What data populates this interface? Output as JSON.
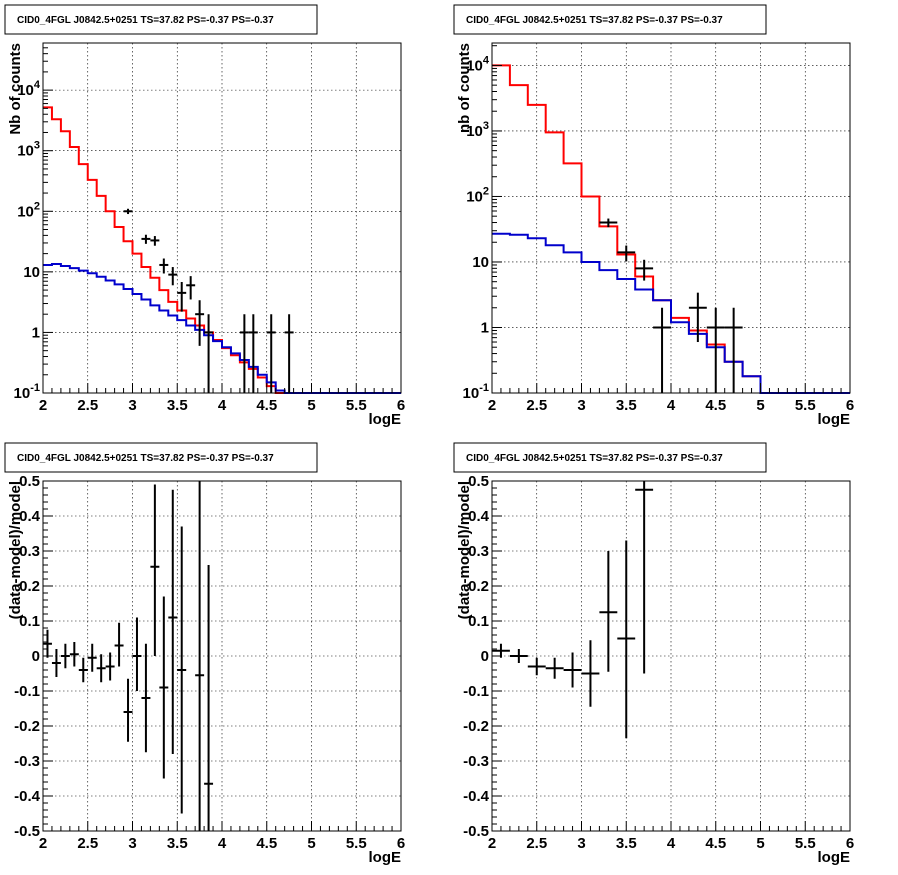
{
  "chart_data": [
    {
      "type": "histogram-errorbar",
      "title": "CID0_4FGL J0842.5+0251 TS=37.82 PS=-0.37 PS=-0.37",
      "xlabel": "logE",
      "ylabel": "Nb of counts",
      "xlim": [
        2,
        6
      ],
      "ylim": [
        0.1,
        60000
      ],
      "yscale": "log",
      "grid": true,
      "x_ticks": [
        "2",
        "2.5",
        "3",
        "3.5",
        "4",
        "4.5",
        "5",
        "5.5",
        "6"
      ],
      "y_ticks": [
        "10^-1",
        "1",
        "10",
        "10^2",
        "10^3",
        "10^4"
      ],
      "bin_width": 0.1,
      "bin_lows": [
        2.0,
        2.1,
        2.2,
        2.3,
        2.4,
        2.5,
        2.6,
        2.7,
        2.8,
        2.9,
        3.0,
        3.1,
        3.2,
        3.3,
        3.4,
        3.5,
        3.6,
        3.7,
        3.8,
        3.9,
        4.0,
        4.1,
        4.2,
        4.3,
        4.4,
        4.5,
        4.6,
        4.7,
        4.8,
        4.9,
        5.0,
        5.1,
        5.2,
        5.3,
        5.4,
        5.5,
        5.6,
        5.7,
        5.8,
        5.9
      ],
      "series": [
        {
          "color": "#ff0000",
          "style": "step",
          "values": [
            5200,
            3300,
            2100,
            1150,
            600,
            330,
            180,
            100,
            55,
            32,
            20,
            12,
            8,
            5,
            3.2,
            2.3,
            1.7,
            1.3,
            1.0,
            0.75,
            0.55,
            0.42,
            0.32,
            0.25,
            0.18,
            0.13,
            0.1,
            0.1,
            0.1,
            0.1,
            0.1,
            0.1,
            0.1,
            0.1,
            0.1,
            0.1,
            0.1,
            0.1,
            0.1,
            0.1
          ]
        },
        {
          "color": "#0000cc",
          "style": "step",
          "values": [
            13,
            13.5,
            12.5,
            11.5,
            10.5,
            9.5,
            8.3,
            7.2,
            6.2,
            5.2,
            4.3,
            3.5,
            2.8,
            2.3,
            1.9,
            1.6,
            1.3,
            1.1,
            0.9,
            0.72,
            0.57,
            0.45,
            0.35,
            0.27,
            0.2,
            0.15,
            0.11,
            0.1,
            0.1,
            0.1,
            0.1,
            0.1,
            0.1,
            0.1,
            0.1,
            0.1,
            0.1,
            0.1,
            0.1,
            0.1
          ]
        }
      ],
      "points": [
        {
          "x": 2.95,
          "y": 100,
          "lo": 90,
          "hi": 110
        },
        {
          "x": 3.15,
          "y": 35,
          "lo": 29,
          "hi": 41
        },
        {
          "x": 3.25,
          "y": 33,
          "lo": 27,
          "hi": 39
        },
        {
          "x": 3.35,
          "y": 13,
          "lo": 9.4,
          "hi": 16.6
        },
        {
          "x": 3.45,
          "y": 9,
          "lo": 6,
          "hi": 12
        },
        {
          "x": 3.55,
          "y": 4.5,
          "lo": 2.2,
          "hi": 6.8
        },
        {
          "x": 3.65,
          "y": 6,
          "lo": 3.5,
          "hi": 8.5
        },
        {
          "x": 3.75,
          "y": 2,
          "lo": 0.6,
          "hi": 3.4
        },
        {
          "x": 3.85,
          "y": 1,
          "lo": 0.1,
          "hi": 2
        },
        {
          "x": 4.25,
          "y": 1,
          "lo": 0.1,
          "hi": 2
        },
        {
          "x": 4.35,
          "y": 1,
          "lo": 0.1,
          "hi": 2
        },
        {
          "x": 4.55,
          "y": 1,
          "lo": 0.1,
          "hi": 2
        },
        {
          "x": 4.75,
          "y": 1,
          "lo": 0.1,
          "hi": 2
        }
      ]
    },
    {
      "type": "histogram-errorbar",
      "title": "CID0_4FGL J0842.5+0251 TS=37.82 PS=-0.37 PS=-0.37",
      "xlabel": "logE",
      "ylabel": "nb of counts",
      "xlim": [
        2,
        6
      ],
      "ylim": [
        0.1,
        22000
      ],
      "yscale": "log",
      "grid": true,
      "x_ticks": [
        "2",
        "2.5",
        "3",
        "3.5",
        "4",
        "4.5",
        "5",
        "5.5",
        "6"
      ],
      "y_ticks": [
        "10^-1",
        "1",
        "10",
        "10^2",
        "10^3",
        "10^4"
      ],
      "bin_width": 0.2,
      "bin_lows": [
        2.0,
        2.2,
        2.4,
        2.6,
        2.8,
        3.0,
        3.2,
        3.4,
        3.6,
        3.8,
        4.0,
        4.2,
        4.4,
        4.6,
        4.8,
        5.0,
        5.2,
        5.4,
        5.6,
        5.8
      ],
      "series": [
        {
          "color": "#ff0000",
          "style": "step",
          "values": [
            10000,
            5000,
            2500,
            950,
            320,
            100,
            35,
            13,
            6,
            2.6,
            1.4,
            0.9,
            0.55,
            0.3,
            0.18,
            0.1,
            0.1,
            0.1,
            0.1,
            0.1
          ]
        },
        {
          "color": "#0000cc",
          "style": "step",
          "values": [
            27,
            26,
            23,
            18,
            14,
            10,
            7.5,
            5.5,
            3.8,
            2.6,
            1.2,
            0.8,
            0.5,
            0.3,
            0.18,
            0.1,
            0.1,
            0.1,
            0.1,
            0.1
          ]
        }
      ],
      "points": [
        {
          "x": 3.3,
          "y": 40,
          "lo": 34,
          "hi": 46
        },
        {
          "x": 3.5,
          "y": 14,
          "lo": 10.2,
          "hi": 17.8
        },
        {
          "x": 3.7,
          "y": 8,
          "lo": 5.2,
          "hi": 10.8
        },
        {
          "x": 3.9,
          "y": 1,
          "lo": 0.1,
          "hi": 2
        },
        {
          "x": 4.3,
          "y": 2,
          "lo": 0.6,
          "hi": 3.4
        },
        {
          "x": 4.5,
          "y": 1,
          "lo": 0.1,
          "hi": 2
        },
        {
          "x": 4.7,
          "y": 1,
          "lo": 0.1,
          "hi": 2
        }
      ]
    },
    {
      "type": "errorbar",
      "title": "CID0_4FGL J0842.5+0251 TS=37.82 PS=-0.37 PS=-0.37",
      "xlabel": "logE",
      "ylabel": "(data-model)/model",
      "xlim": [
        2,
        6
      ],
      "ylim": [
        -0.5,
        0.5
      ],
      "yscale": "linear",
      "grid": true,
      "x_ticks": [
        "2",
        "2.5",
        "3",
        "3.5",
        "4",
        "4.5",
        "5",
        "5.5",
        "6"
      ],
      "y_ticks": [
        "-0.5",
        "-0.4",
        "-0.3",
        "-0.2",
        "-0.1",
        "0",
        "0.1",
        "0.2",
        "0.3",
        "0.4",
        "0.5"
      ],
      "bin_width": 0.1,
      "points": [
        {
          "x": 2.05,
          "y": 0.035,
          "lo": -0.005,
          "hi": 0.075
        },
        {
          "x": 2.15,
          "y": -0.02,
          "lo": -0.06,
          "hi": 0.02
        },
        {
          "x": 2.25,
          "y": 0.0,
          "lo": -0.035,
          "hi": 0.035
        },
        {
          "x": 2.35,
          "y": 0.005,
          "lo": -0.03,
          "hi": 0.04
        },
        {
          "x": 2.45,
          "y": -0.04,
          "lo": -0.075,
          "hi": -0.005
        },
        {
          "x": 2.55,
          "y": -0.005,
          "lo": -0.045,
          "hi": 0.035
        },
        {
          "x": 2.65,
          "y": -0.035,
          "lo": -0.075,
          "hi": 0.005
        },
        {
          "x": 2.75,
          "y": -0.03,
          "lo": -0.07,
          "hi": 0.01
        },
        {
          "x": 2.85,
          "y": 0.03,
          "lo": -0.03,
          "hi": 0.095
        },
        {
          "x": 2.95,
          "y": -0.16,
          "lo": -0.245,
          "hi": -0.065
        },
        {
          "x": 3.05,
          "y": 0.0,
          "lo": -0.1,
          "hi": 0.11
        },
        {
          "x": 3.15,
          "y": -0.12,
          "lo": -0.275,
          "hi": 0.035
        },
        {
          "x": 3.25,
          "y": 0.255,
          "lo": 0.0,
          "hi": 0.49
        },
        {
          "x": 3.35,
          "y": -0.09,
          "lo": -0.35,
          "hi": 0.17
        },
        {
          "x": 3.45,
          "y": 0.11,
          "lo": -0.28,
          "hi": 0.475
        },
        {
          "x": 3.55,
          "y": -0.04,
          "lo": -0.45,
          "hi": 0.37
        },
        {
          "x": 3.75,
          "y": -0.055,
          "lo": -0.5,
          "hi": 0.5
        },
        {
          "x": 3.85,
          "y": -0.365,
          "lo": -0.5,
          "hi": 0.26
        }
      ]
    },
    {
      "type": "errorbar",
      "title": "CID0_4FGL J0842.5+0251 TS=37.82 PS=-0.37 PS=-0.37",
      "xlabel": "logE",
      "ylabel": "(data-model)/model",
      "xlim": [
        2,
        6
      ],
      "ylim": [
        -0.5,
        0.5
      ],
      "yscale": "linear",
      "grid": true,
      "x_ticks": [
        "2",
        "2.5",
        "3",
        "3.5",
        "4",
        "4.5",
        "5",
        "5.5",
        "6"
      ],
      "y_ticks": [
        "-0.5",
        "-0.4",
        "-0.3",
        "-0.2",
        "-0.1",
        "0",
        "0.1",
        "0.2",
        "0.3",
        "0.4",
        "0.5"
      ],
      "bin_width": 0.2,
      "points": [
        {
          "x": 2.1,
          "y": 0.015,
          "lo": -0.005,
          "hi": 0.035
        },
        {
          "x": 2.3,
          "y": 0.0,
          "lo": -0.02,
          "hi": 0.02
        },
        {
          "x": 2.5,
          "y": -0.03,
          "lo": -0.055,
          "hi": -0.005
        },
        {
          "x": 2.7,
          "y": -0.035,
          "lo": -0.065,
          "hi": -0.005
        },
        {
          "x": 2.9,
          "y": -0.04,
          "lo": -0.09,
          "hi": 0.01
        },
        {
          "x": 3.1,
          "y": -0.05,
          "lo": -0.145,
          "hi": 0.045
        },
        {
          "x": 3.3,
          "y": 0.125,
          "lo": -0.045,
          "hi": 0.3
        },
        {
          "x": 3.5,
          "y": 0.05,
          "lo": -0.235,
          "hi": 0.33
        },
        {
          "x": 3.7,
          "y": 0.475,
          "lo": -0.05,
          "hi": 0.5
        }
      ]
    }
  ]
}
